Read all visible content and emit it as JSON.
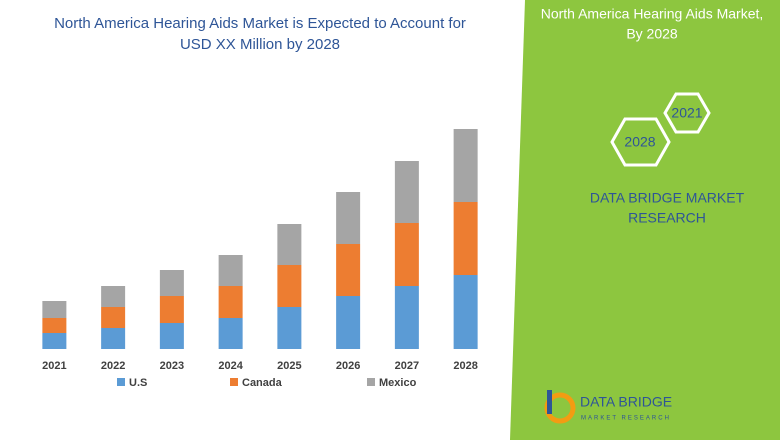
{
  "chart_data": {
    "type": "stacked_bar",
    "title": [
      "North America Hearing Aids Market is Expected to Account for",
      "USD XX Million by 2028"
    ],
    "categories": [
      "2021",
      "2022",
      "2023",
      "2024",
      "2025",
      "2026",
      "2027",
      "2028"
    ],
    "series": [
      {
        "name": "U.S",
        "color": "#5b9bd5",
        "values": [
          16,
          21,
          26,
          31,
          42,
          53,
          63,
          74
        ]
      },
      {
        "name": "Canada",
        "color": "#ed7d31",
        "values": [
          15,
          21,
          27,
          32,
          42,
          52,
          63,
          73
        ]
      },
      {
        "name": "Mexico",
        "color": "#a5a5a5",
        "values": [
          17,
          21,
          26,
          31,
          41,
          52,
          62,
          73
        ]
      }
    ],
    "ylim": [
      0,
      230
    ],
    "grid": false,
    "legend": "bottom"
  },
  "panel": {
    "title": [
      "North America Hearing Aids Market,",
      "By 2028"
    ],
    "hexagons": [
      "2021",
      "2028"
    ],
    "brand": [
      "DATA BRIDGE MARKET",
      "RESEARCH"
    ],
    "logo": [
      "DATA BRIDGE",
      "MARKET RESEARCH"
    ]
  }
}
